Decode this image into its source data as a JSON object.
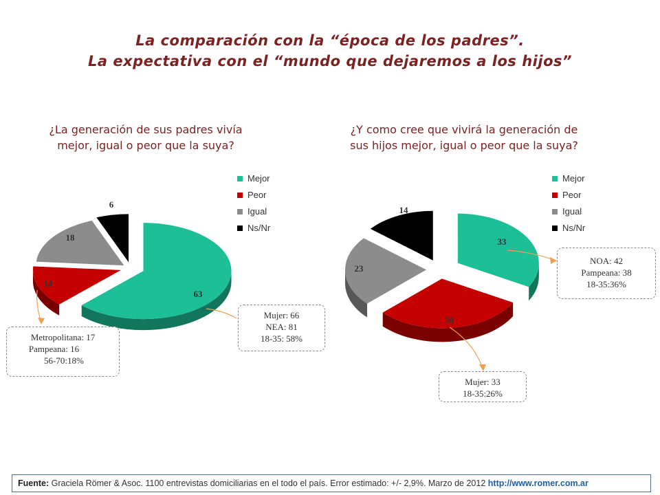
{
  "title": {
    "line1": "La comparación con la “época de los padres”.",
    "line2": "La expectativa con el “mundo que dejaremos a los hijos”"
  },
  "chart_data": [
    {
      "type": "pie",
      "title": "¿La generación de sus padres vivía mejor, igual o peor  que la suya?",
      "categories": [
        "Mejor",
        "Peor",
        "Igual",
        "Ns/Nr"
      ],
      "values": [
        63,
        14,
        18,
        6
      ],
      "colors": [
        "#1dbf96",
        "#c40000",
        "#8c8c8c",
        "#000000"
      ],
      "legend": "top-right"
    },
    {
      "type": "pie",
      "title": "¿Y como cree que vivirá la generación de sus hijos mejor, igual o peor  que la suya?",
      "categories": [
        "Mejor",
        "Peor",
        "Igual",
        "Ns/Nr"
      ],
      "values": [
        33,
        30,
        23,
        14
      ],
      "colors": [
        "#1dbf96",
        "#c40000",
        "#8c8c8c",
        "#000000"
      ],
      "legend": "top-right"
    }
  ],
  "callouts": {
    "left_mejor": [
      "Mujer: 66",
      "NEA: 81",
      "18-35: 58%"
    ],
    "left_peor": [
      "Metropolitana: 17",
      "Pampeana: 16",
      "56-70:18%"
    ],
    "right_mejor": [
      "NOA: 42",
      "Pampeana: 38",
      "18-35:36%"
    ],
    "right_peor": [
      "Mujer: 33",
      "18-35:26%"
    ]
  },
  "footer": {
    "label": "Fuente:",
    "text": " Graciela Römer & Asoc. 1100 entrevistas domiciliarias en el todo el país. Error estimado: +/- 2,9%. Marzo de 2012 ",
    "url": "http://www.romer.com.ar"
  }
}
